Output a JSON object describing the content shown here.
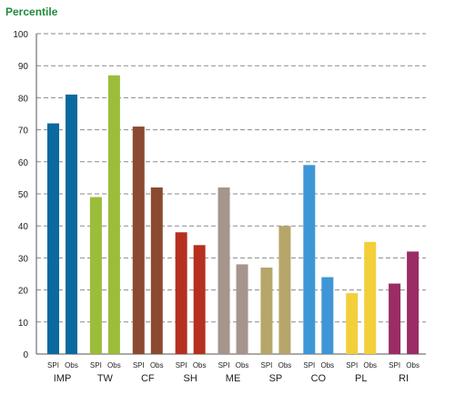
{
  "chart_data": {
    "type": "bar",
    "title": "Percentile",
    "ylim": [
      0,
      100
    ],
    "yticks": [
      0,
      10,
      20,
      30,
      40,
      50,
      60,
      70,
      80,
      90,
      100
    ],
    "grid": true,
    "groups": [
      {
        "label": "IMP",
        "color": "#0a6aa0",
        "bars": [
          {
            "label": "SPI",
            "value": 72
          },
          {
            "label": "Obs",
            "value": 81
          }
        ]
      },
      {
        "label": "TW",
        "color": "#9bbd3a",
        "bars": [
          {
            "label": "SPI",
            "value": 49
          },
          {
            "label": "Obs",
            "value": 87
          }
        ]
      },
      {
        "label": "CF",
        "color": "#8b4a2f",
        "bars": [
          {
            "label": "SPI",
            "value": 71
          },
          {
            "label": "Obs",
            "value": 52
          }
        ]
      },
      {
        "label": "SH",
        "color": "#b5301f",
        "bars": [
          {
            "label": "SPI",
            "value": 38
          },
          {
            "label": "Obs",
            "value": 34
          }
        ]
      },
      {
        "label": "ME",
        "color": "#a5958c",
        "bars": [
          {
            "label": "SPI",
            "value": 52
          },
          {
            "label": "Obs",
            "value": 28
          }
        ]
      },
      {
        "label": "SP",
        "color": "#b7a66a",
        "bars": [
          {
            "label": "SPI",
            "value": 27
          },
          {
            "label": "Obs",
            "value": 40
          }
        ]
      },
      {
        "label": "CO",
        "color": "#3f96d6",
        "bars": [
          {
            "label": "SPI",
            "value": 59
          },
          {
            "label": "Obs",
            "value": 24
          }
        ]
      },
      {
        "label": "PL",
        "color": "#f3cf3a",
        "bars": [
          {
            "label": "SPI",
            "value": 19
          },
          {
            "label": "Obs",
            "value": 35
          }
        ]
      },
      {
        "label": "RI",
        "color": "#9a2c66",
        "bars": [
          {
            "label": "SPI",
            "value": 22
          },
          {
            "label": "Obs",
            "value": 32
          }
        ]
      }
    ]
  }
}
